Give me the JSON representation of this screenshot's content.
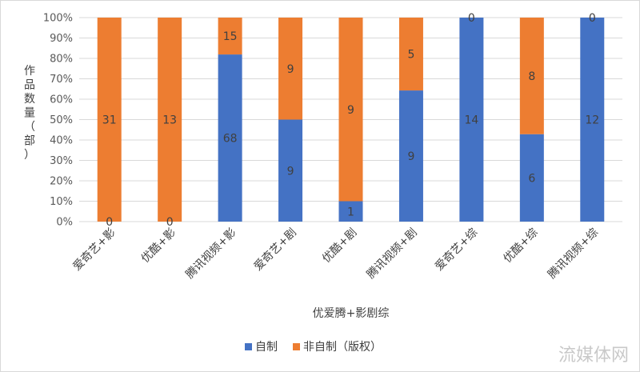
{
  "chart_data": {
    "type": "bar",
    "stacked": "percent",
    "categories": [
      "爱奇艺+影",
      "优酷+影",
      "腾讯视频+影",
      "爱奇艺+剧",
      "优酷+剧",
      "腾讯视频+剧",
      "爱奇艺+综",
      "优酷+综",
      "腾讯视频+综"
    ],
    "series": [
      {
        "name": "自制",
        "color": "#4472C4",
        "values": [
          0,
          0,
          68,
          9,
          1,
          9,
          14,
          6,
          12
        ]
      },
      {
        "name": "非自制（版权）",
        "color": "#ED7D31",
        "values": [
          31,
          13,
          15,
          9,
          9,
          5,
          0,
          8,
          0
        ]
      }
    ],
    "yticks": [
      "0%",
      "10%",
      "20%",
      "30%",
      "40%",
      "50%",
      "60%",
      "70%",
      "80%",
      "90%",
      "100%"
    ],
    "ylim": [
      0,
      100
    ],
    "xlabel": "优爱腾+影剧综",
    "ylabel": "作品数量（部）",
    "grid": true,
    "legend_position": "bottom"
  },
  "watermark": "流媒体网"
}
